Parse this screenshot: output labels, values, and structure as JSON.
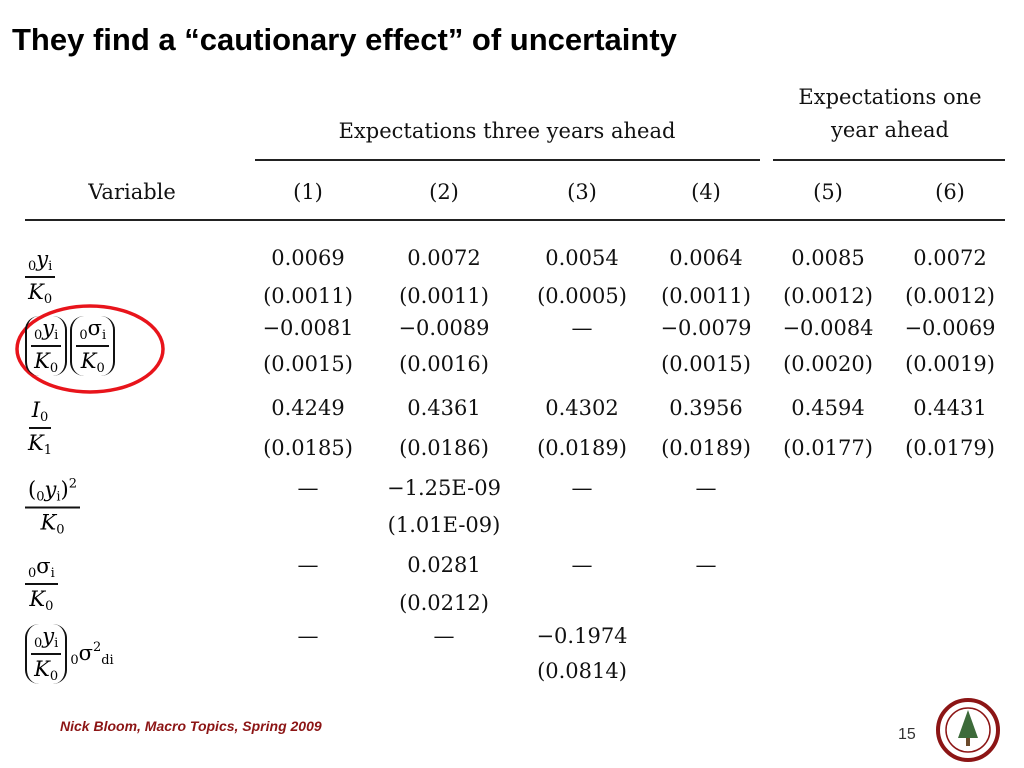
{
  "title": "They find a “cautionary effect” of uncertainty",
  "table": {
    "group_headers": [
      "Expectations three years ahead",
      "Expectations one year ahead"
    ],
    "column_headers": [
      "Variable",
      "(1)",
      "(2)",
      "(3)",
      "(4)",
      "(5)",
      "(6)"
    ],
    "rows": [
      {
        "variable": {
          "fracs": [
            {
              "num": [
                {
                  "text": "0",
                  "style": "sub"
                },
                {
                  "text": "y",
                  "style": "base"
                },
                {
                  "text": "i",
                  "style": "sub"
                }
              ],
              "den": [
                {
                  "text": "K",
                  "style": "base"
                },
                {
                  "text": "0",
                  "style": "sub"
                }
              ]
            }
          ]
        },
        "coefficients": [
          "0.0069",
          "0.0072",
          "0.0054",
          "0.0064",
          "0.0085",
          "0.0072"
        ],
        "errors": [
          "(0.0011)",
          "(0.0011)",
          "(0.0005)",
          "(0.0011)",
          "(0.0012)",
          "(0.0012)"
        ]
      },
      {
        "variable": {
          "fracs": [
            {
              "delimited": true,
              "num": [
                {
                  "text": "0",
                  "style": "sub"
                },
                {
                  "text": "y",
                  "style": "base"
                },
                {
                  "text": "i",
                  "style": "sub"
                }
              ],
              "den": [
                {
                  "text": "K",
                  "style": "base"
                },
                {
                  "text": "0",
                  "style": "sub"
                }
              ]
            },
            {
              "delimited": true,
              "num": [
                {
                  "text": "0",
                  "style": "sub"
                },
                {
                  "text": "σ",
                  "style": "plain"
                },
                {
                  "text": "i",
                  "style": "sub"
                }
              ],
              "den": [
                {
                  "text": "K",
                  "style": "base"
                },
                {
                  "text": "0",
                  "style": "sub"
                }
              ]
            }
          ]
        },
        "coefficients": [
          "−0.0081",
          "−0.0089",
          "—",
          "−0.0079",
          "−0.0084",
          "−0.0069"
        ],
        "errors": [
          "(0.0015)",
          "(0.0016)",
          null,
          "(0.0015)",
          "(0.0020)",
          "(0.0019)"
        ]
      },
      {
        "variable": {
          "fracs": [
            {
              "num": [
                {
                  "text": "I",
                  "style": "base"
                },
                {
                  "text": "0",
                  "style": "sub"
                }
              ],
              "den": [
                {
                  "text": "K",
                  "style": "base"
                },
                {
                  "text": "1",
                  "style": "sub"
                }
              ]
            }
          ]
        },
        "coefficients": [
          "0.4249",
          "0.4361",
          "0.4302",
          "0.3956",
          "0.4594",
          "0.4431"
        ],
        "errors": [
          "(0.0185)",
          "(0.0186)",
          "(0.0189)",
          "(0.0189)",
          "(0.0177)",
          "(0.0179)"
        ]
      },
      {
        "variable": {
          "fracs": [
            {
              "num": [
                {
                  "text": "(",
                  "style": "plain"
                },
                {
                  "text": "0",
                  "style": "sub"
                },
                {
                  "text": "y",
                  "style": "base"
                },
                {
                  "text": "i",
                  "style": "sub"
                },
                {
                  "text": ")",
                  "style": "plain"
                },
                {
                  "text": "2",
                  "style": "sup"
                }
              ],
              "den": [
                {
                  "text": "K",
                  "style": "base"
                },
                {
                  "text": "0",
                  "style": "sub"
                }
              ]
            }
          ]
        },
        "coefficients": [
          "—",
          "−1.25E-09",
          "—",
          "—",
          null,
          null
        ],
        "errors": [
          null,
          "(1.01E-09)",
          null,
          null,
          null,
          null
        ]
      },
      {
        "variable": {
          "fracs": [
            {
              "num": [
                {
                  "text": "0",
                  "style": "sub"
                },
                {
                  "text": "σ",
                  "style": "plain"
                },
                {
                  "text": "i",
                  "style": "sub"
                }
              ],
              "den": [
                {
                  "text": "K",
                  "style": "base"
                },
                {
                  "text": "0",
                  "style": "sub"
                }
              ]
            }
          ]
        },
        "coefficients": [
          "—",
          "0.0281",
          "—",
          "—",
          null,
          null
        ],
        "errors": [
          null,
          "(0.0212)",
          null,
          null,
          null,
          null
        ]
      },
      {
        "variable": {
          "fracs": [
            {
              "delimited": true,
              "num": [
                {
                  "text": "0",
                  "style": "sub"
                },
                {
                  "text": "y",
                  "style": "base"
                },
                {
                  "text": "i",
                  "style": "sub"
                }
              ],
              "den": [
                {
                  "text": "K",
                  "style": "base"
                },
                {
                  "text": "0",
                  "style": "sub"
                }
              ]
            }
          ],
          "after": [
            {
              "text": "0",
              "style": "sub"
            },
            {
              "text": "σ",
              "style": "plain"
            },
            {
              "text": "2",
              "style": "sup"
            },
            {
              "text": "di",
              "style": "sub"
            }
          ]
        },
        "coefficients": [
          "—",
          "—",
          "−0.1974",
          null,
          null,
          null
        ],
        "errors": [
          null,
          null,
          "(0.0814)",
          null,
          null,
          null
        ]
      }
    ]
  },
  "footer": {
    "credit": "Nick Bloom, Macro Topics, Spring 2009",
    "page_number": "15"
  }
}
